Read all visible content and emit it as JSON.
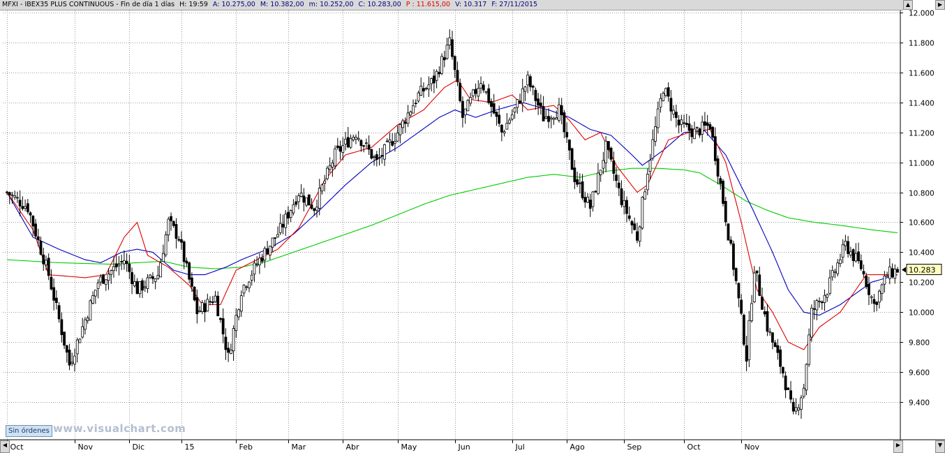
{
  "header": {
    "symbol": "MFXI - IBEX35 PLUS CONTINUOUS - Fin de día 1 días",
    "hour": "H: 19:59",
    "open": "A: 10.275,00",
    "high": "M: 10.382,00",
    "low": "m: 10.252,00",
    "close": "C: 10.283,00",
    "price": "P : 11.615,00",
    "volume": "V: 10.317",
    "date": "F: 27/11/2015"
  },
  "orders_button": "Sin órdenes",
  "watermark": "www.visualchart.com",
  "colors": {
    "header_bg": "#d9d9d9",
    "header_blue": "#000080",
    "header_red": "#e00000",
    "ma_fast": "#e00000",
    "ma_mid": "#0000c0",
    "ma_slow": "#00cc00",
    "candle": "#000000",
    "grid": "#9a9a9a"
  },
  "chart_data": {
    "type": "candlestick",
    "title": "MFXI - IBEX35 PLUS CONTINUOUS",
    "ylim": [
      9200,
      12050
    ],
    "y_ticks": [
      "12.000",
      "11.800",
      "11.600",
      "11.400",
      "11.200",
      "11.000",
      "10.800",
      "10.600",
      "10.400",
      "10.200",
      "10.000",
      "9.800",
      "9.600",
      "9.400"
    ],
    "y_tick_values": [
      12000,
      11800,
      11600,
      11400,
      11200,
      11000,
      10800,
      10600,
      10400,
      10200,
      10000,
      9800,
      9600,
      9400
    ],
    "x_labels": [
      "Oct",
      "Nov",
      "Dic",
      "15",
      "Feb",
      "Mar",
      "Abr",
      "May",
      "Jun",
      "Jul",
      "Ago",
      "Sep",
      "Oct",
      "Nov"
    ],
    "last_price_label": "10.283",
    "grid": true,
    "close_path": [
      [
        0,
        10800
      ],
      [
        8,
        10700
      ],
      [
        16,
        10250
      ],
      [
        24,
        9650
      ],
      [
        27,
        9800
      ],
      [
        35,
        10200
      ],
      [
        45,
        10350
      ],
      [
        50,
        10150
      ],
      [
        58,
        10250
      ],
      [
        62,
        10600
      ],
      [
        66,
        10500
      ],
      [
        73,
        10000
      ],
      [
        80,
        10100
      ],
      [
        85,
        9700
      ],
      [
        90,
        10150
      ],
      [
        97,
        10350
      ],
      [
        105,
        10550
      ],
      [
        112,
        10800
      ],
      [
        118,
        10700
      ],
      [
        126,
        11050
      ],
      [
        134,
        11200
      ],
      [
        142,
        11000
      ],
      [
        150,
        11200
      ],
      [
        158,
        11450
      ],
      [
        164,
        11550
      ],
      [
        170,
        11800
      ],
      [
        175,
        11300
      ],
      [
        182,
        11550
      ],
      [
        190,
        11200
      ],
      [
        195,
        11350
      ],
      [
        200,
        11550
      ],
      [
        206,
        11300
      ],
      [
        212,
        11350
      ],
      [
        218,
        10900
      ],
      [
        224,
        10700
      ],
      [
        230,
        11100
      ],
      [
        236,
        10750
      ],
      [
        242,
        10500
      ],
      [
        246,
        10950
      ],
      [
        252,
        11500
      ],
      [
        258,
        11250
      ],
      [
        264,
        11200
      ],
      [
        270,
        11250
      ],
      [
        274,
        10850
      ],
      [
        280,
        10200
      ],
      [
        284,
        9700
      ],
      [
        287,
        10300
      ],
      [
        292,
        9900
      ],
      [
        298,
        9600
      ],
      [
        302,
        9300
      ],
      [
        306,
        9500
      ],
      [
        309,
        10000
      ],
      [
        315,
        10150
      ],
      [
        322,
        10450
      ],
      [
        328,
        10300
      ],
      [
        333,
        10050
      ],
      [
        338,
        10250
      ],
      [
        342,
        10283
      ]
    ],
    "ma_fast": [
      [
        0,
        10800
      ],
      [
        10,
        10550
      ],
      [
        16,
        10250
      ],
      [
        30,
        10230
      ],
      [
        38,
        10250
      ],
      [
        45,
        10500
      ],
      [
        50,
        10600
      ],
      [
        54,
        10380
      ],
      [
        62,
        10300
      ],
      [
        70,
        10180
      ],
      [
        75,
        10050
      ],
      [
        82,
        10050
      ],
      [
        88,
        10280
      ],
      [
        96,
        10350
      ],
      [
        104,
        10420
      ],
      [
        112,
        10560
      ],
      [
        122,
        10880
      ],
      [
        130,
        11050
      ],
      [
        140,
        11100
      ],
      [
        150,
        11250
      ],
      [
        160,
        11350
      ],
      [
        168,
        11500
      ],
      [
        173,
        11550
      ],
      [
        178,
        11420
      ],
      [
        186,
        11400
      ],
      [
        194,
        11450
      ],
      [
        200,
        11350
      ],
      [
        210,
        11380
      ],
      [
        216,
        11280
      ],
      [
        222,
        11150
      ],
      [
        228,
        11200
      ],
      [
        234,
        10980
      ],
      [
        242,
        10800
      ],
      [
        246,
        10850
      ],
      [
        254,
        11150
      ],
      [
        262,
        11200
      ],
      [
        270,
        11220
      ],
      [
        276,
        11000
      ],
      [
        282,
        10600
      ],
      [
        288,
        10150
      ],
      [
        294,
        10000
      ],
      [
        300,
        9800
      ],
      [
        306,
        9750
      ],
      [
        312,
        9900
      ],
      [
        320,
        10000
      ],
      [
        330,
        10250
      ],
      [
        342,
        10250
      ]
    ],
    "ma_mid": [
      [
        0,
        10800
      ],
      [
        10,
        10500
      ],
      [
        20,
        10420
      ],
      [
        30,
        10350
      ],
      [
        36,
        10330
      ],
      [
        44,
        10400
      ],
      [
        50,
        10420
      ],
      [
        56,
        10400
      ],
      [
        64,
        10280
      ],
      [
        70,
        10250
      ],
      [
        76,
        10250
      ],
      [
        84,
        10300
      ],
      [
        90,
        10350
      ],
      [
        100,
        10420
      ],
      [
        110,
        10520
      ],
      [
        120,
        10680
      ],
      [
        130,
        10850
      ],
      [
        140,
        11000
      ],
      [
        150,
        11100
      ],
      [
        158,
        11200
      ],
      [
        166,
        11300
      ],
      [
        172,
        11350
      ],
      [
        180,
        11300
      ],
      [
        188,
        11350
      ],
      [
        198,
        11400
      ],
      [
        208,
        11350
      ],
      [
        216,
        11300
      ],
      [
        224,
        11220
      ],
      [
        232,
        11180
      ],
      [
        240,
        11050
      ],
      [
        244,
        10980
      ],
      [
        252,
        11080
      ],
      [
        260,
        11200
      ],
      [
        268,
        11210
      ],
      [
        276,
        11050
      ],
      [
        286,
        10700
      ],
      [
        294,
        10400
      ],
      [
        300,
        10150
      ],
      [
        306,
        10000
      ],
      [
        312,
        9980
      ],
      [
        320,
        10050
      ],
      [
        332,
        10200
      ],
      [
        342,
        10250
      ]
    ],
    "ma_slow": [
      [
        0,
        10350
      ],
      [
        20,
        10330
      ],
      [
        40,
        10320
      ],
      [
        60,
        10340
      ],
      [
        70,
        10300
      ],
      [
        80,
        10290
      ],
      [
        90,
        10300
      ],
      [
        100,
        10340
      ],
      [
        110,
        10400
      ],
      [
        120,
        10460
      ],
      [
        130,
        10520
      ],
      [
        140,
        10580
      ],
      [
        150,
        10650
      ],
      [
        160,
        10720
      ],
      [
        170,
        10780
      ],
      [
        180,
        10820
      ],
      [
        190,
        10860
      ],
      [
        200,
        10900
      ],
      [
        210,
        10920
      ],
      [
        220,
        10900
      ],
      [
        230,
        10940
      ],
      [
        240,
        10960
      ],
      [
        250,
        10960
      ],
      [
        260,
        10950
      ],
      [
        266,
        10930
      ],
      [
        274,
        10850
      ],
      [
        284,
        10740
      ],
      [
        292,
        10680
      ],
      [
        300,
        10630
      ],
      [
        310,
        10600
      ],
      [
        320,
        10580
      ],
      [
        332,
        10550
      ],
      [
        342,
        10530
      ]
    ]
  }
}
